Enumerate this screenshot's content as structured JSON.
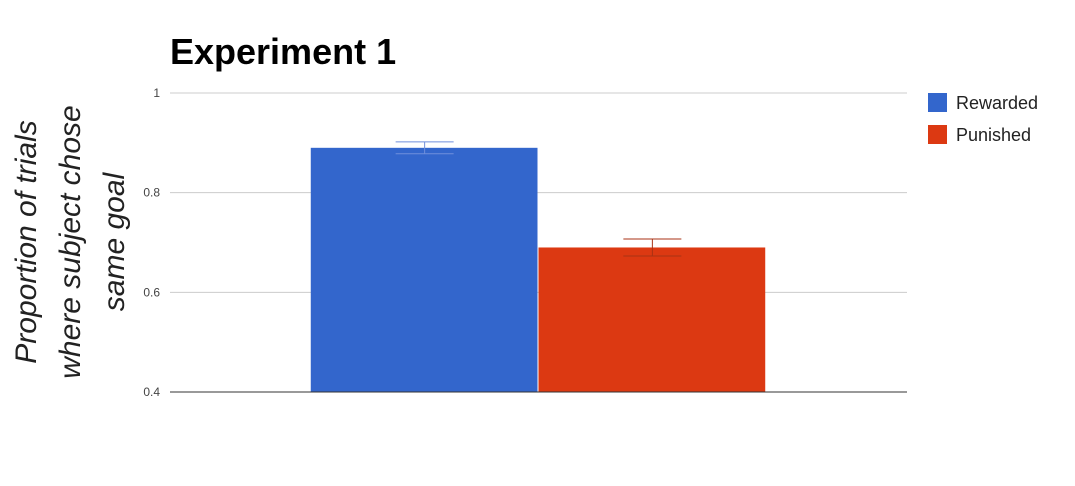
{
  "chart_data": {
    "type": "bar",
    "title": "Experiment 1",
    "xlabel": "",
    "ylabel": "Proportion of trials where subject chose same goal",
    "ylabel_lines": [
      "Proportion of trials",
      "where subject chose",
      "same goal"
    ],
    "ylim": [
      0.4,
      1
    ],
    "yticks": [
      {
        "value": 1,
        "label": "1"
      },
      {
        "value": 0.8,
        "label": "0.8"
      },
      {
        "value": 0.6,
        "label": "0.6"
      },
      {
        "value": 0.4,
        "label": "0.4"
      }
    ],
    "grid": true,
    "legend_position": "top-right",
    "categories": [
      ""
    ],
    "series": [
      {
        "name": "Rewarded",
        "values": [
          0.89
        ],
        "error": [
          0.012
        ],
        "color": "#3366cc",
        "error_color": "#6f8fdc"
      },
      {
        "name": "Punished",
        "values": [
          0.69
        ],
        "error": [
          0.017
        ],
        "color": "#dc3912",
        "error_color": "#a83214"
      }
    ]
  }
}
